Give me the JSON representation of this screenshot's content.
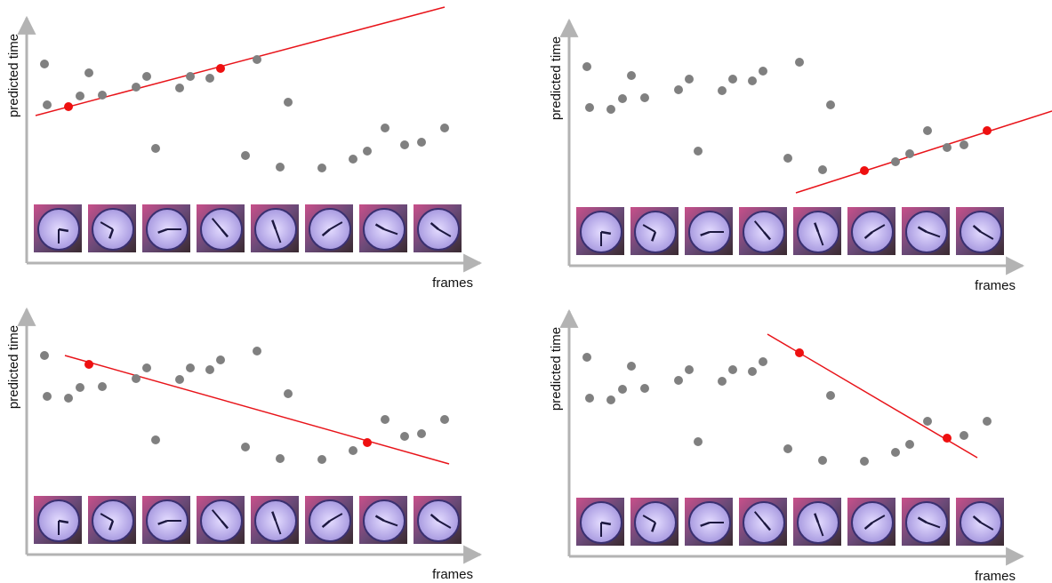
{
  "panels": [
    {
      "y_label": "predicted time",
      "x_label": "frames"
    },
    {
      "y_label": "predicted time",
      "x_label": "frames"
    },
    {
      "y_label": "predicted time",
      "x_label": "frames"
    },
    {
      "y_label": "predicted time",
      "x_label": "frames"
    }
  ]
}
